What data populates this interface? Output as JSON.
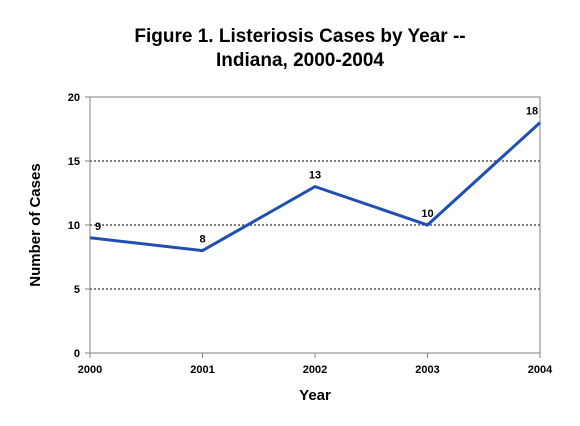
{
  "chart_data": {
    "type": "line",
    "title_line1": "Figure 1.  Listeriosis Cases by Year --",
    "title_line2": "Indiana, 2000-2004",
    "xlabel": "Year",
    "ylabel": "Number of Cases",
    "categories": [
      "2000",
      "2001",
      "2002",
      "2003",
      "2004"
    ],
    "ylim": [
      0,
      20
    ],
    "yticks": [
      "0",
      "5",
      "10",
      "15",
      "20"
    ],
    "grid": "horizontal-dotted",
    "series": [
      {
        "values": [
          9,
          8,
          13,
          10,
          18
        ],
        "data_labels": [
          "9",
          "8",
          "13",
          "10",
          "18"
        ],
        "color": "#1f4fb4"
      }
    ]
  }
}
